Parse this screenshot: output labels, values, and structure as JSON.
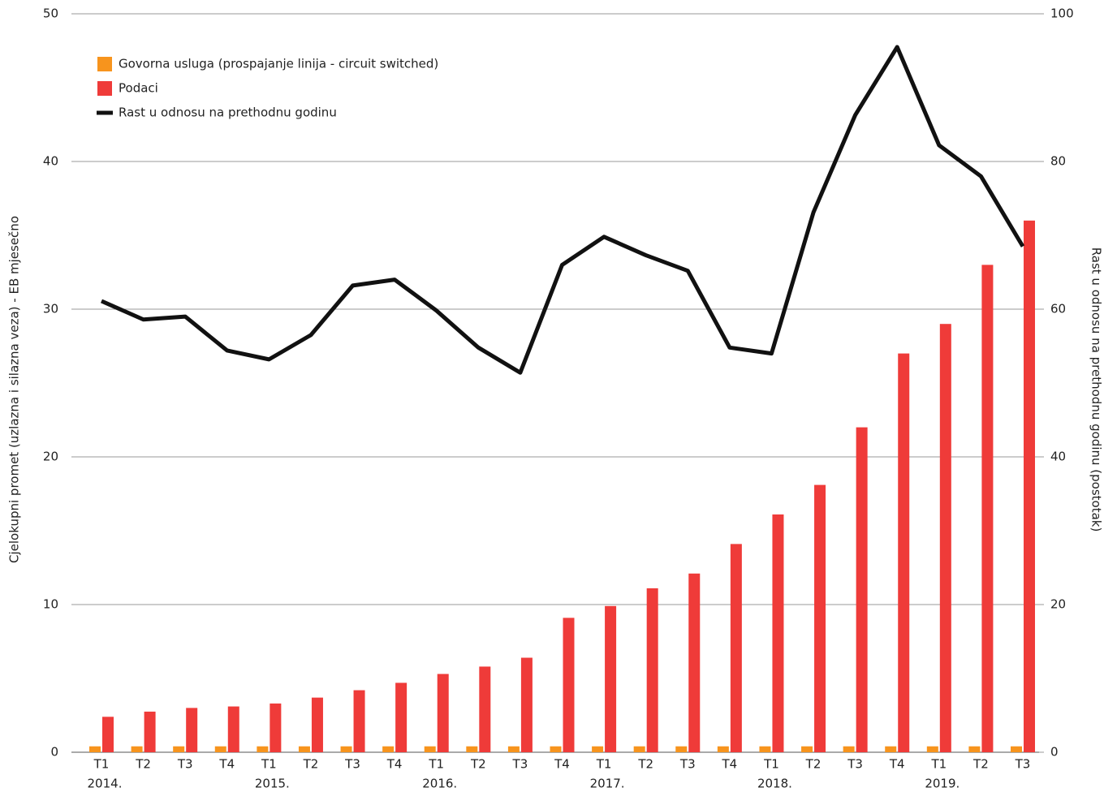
{
  "chart_data": {
    "type": "bar_line",
    "y_label": "Cjelokupni promet (uzlazna i silazna veza) - EB mjesečno",
    "y2_label": "Rast u odnosu na prethodnu godinu (postotak)",
    "categories": [
      "T1",
      "T2",
      "T3",
      "T4",
      "T1",
      "T2",
      "T3",
      "T4",
      "T1",
      "T2",
      "T3",
      "T4",
      "T1",
      "T2",
      "T3",
      "T4",
      "T1",
      "T2",
      "T3",
      "T4",
      "T1",
      "T2",
      "T3"
    ],
    "category_years": [
      "2014.",
      null,
      null,
      null,
      "2015.",
      null,
      null,
      null,
      "2016.",
      null,
      null,
      null,
      "2017.",
      null,
      null,
      null,
      "2018.",
      null,
      null,
      null,
      "2019.",
      null,
      null
    ],
    "series": [
      {
        "name": "Govorna usluga (prospajanje linija - circuit switched)",
        "type": "bar",
        "color": "#f7941d",
        "values": [
          0.4,
          0.4,
          0.4,
          0.4,
          0.4,
          0.4,
          0.4,
          0.4,
          0.4,
          0.4,
          0.4,
          0.4,
          0.4,
          0.4,
          0.4,
          0.4,
          0.4,
          0.4,
          0.4,
          0.4,
          0.4,
          0.4,
          0.4
        ]
      },
      {
        "name": "Podaci",
        "type": "bar",
        "color": "#ef3b39",
        "values": [
          2.4,
          2.75,
          3.0,
          3.1,
          3.3,
          3.7,
          4.2,
          4.7,
          5.3,
          5.8,
          6.4,
          9.1,
          9.9,
          11.1,
          12.1,
          14.1,
          16.1,
          18.1,
          22.0,
          27.0,
          29.0,
          33.0,
          36.0
        ]
      },
      {
        "name": "Rast u odnosu na prethodnu godinu",
        "type": "line",
        "axis": "y2",
        "color": "#111111",
        "values": [
          61.1,
          58.6,
          59.0,
          54.4,
          53.2,
          56.5,
          63.2,
          64.0,
          59.8,
          54.8,
          51.4,
          66.0,
          69.8,
          67.3,
          65.2,
          54.8,
          54.0,
          73.1,
          86.3,
          95.5,
          82.2,
          78.0,
          68.5
        ]
      }
    ],
    "ylim": [
      0,
      50
    ],
    "yticks": [
      0,
      10,
      20,
      30,
      40,
      50
    ],
    "y2lim": [
      0,
      100
    ],
    "y2ticks": [
      0,
      20,
      40,
      60,
      80,
      100
    ],
    "grid": true,
    "legend": "top-left"
  }
}
